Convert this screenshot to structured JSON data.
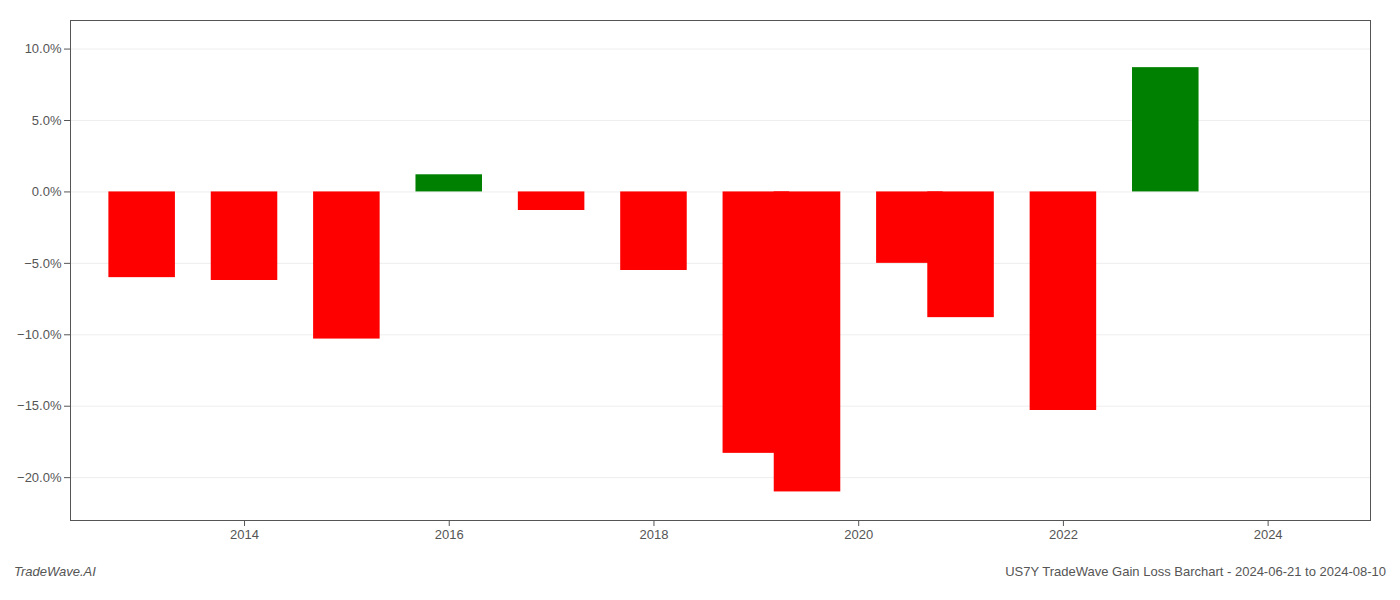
{
  "chart_data": {
    "type": "bar",
    "x": [
      2013,
      2014,
      2015,
      2016,
      2017,
      2018,
      2019,
      2019.5,
      2020.5,
      2021,
      2022,
      2023
    ],
    "values": [
      -6.0,
      -6.2,
      -10.3,
      1.2,
      -1.3,
      -5.5,
      -18.3,
      -21.0,
      -5.0,
      -8.8,
      -15.3,
      8.7
    ],
    "colors": [
      "#ff0000",
      "#ff0000",
      "#ff0000",
      "#008000",
      "#ff0000",
      "#ff0000",
      "#ff0000",
      "#ff0000",
      "#ff0000",
      "#ff0000",
      "#ff0000",
      "#008000"
    ],
    "xlim": [
      2012.3,
      2025.0
    ],
    "xticks": [
      2014,
      2016,
      2018,
      2020,
      2022,
      2024
    ],
    "ylim": [
      -23,
      12
    ],
    "yticks": [
      {
        "value": -20.0,
        "label": "−20.0%"
      },
      {
        "value": -15.0,
        "label": "−15.0%"
      },
      {
        "value": -10.0,
        "label": "−10.0%"
      },
      {
        "value": -5.0,
        "label": "−5.0%"
      },
      {
        "value": 0.0,
        "label": "0.0%"
      },
      {
        "value": 5.0,
        "label": "5.0%"
      },
      {
        "value": 10.0,
        "label": "10.0%"
      }
    ],
    "grid": true,
    "annotations": [
      "TradeWave.AI",
      "US7Y TradeWave Gain Loss Barchart - 2024-06-21 to 2024-08-10"
    ]
  }
}
